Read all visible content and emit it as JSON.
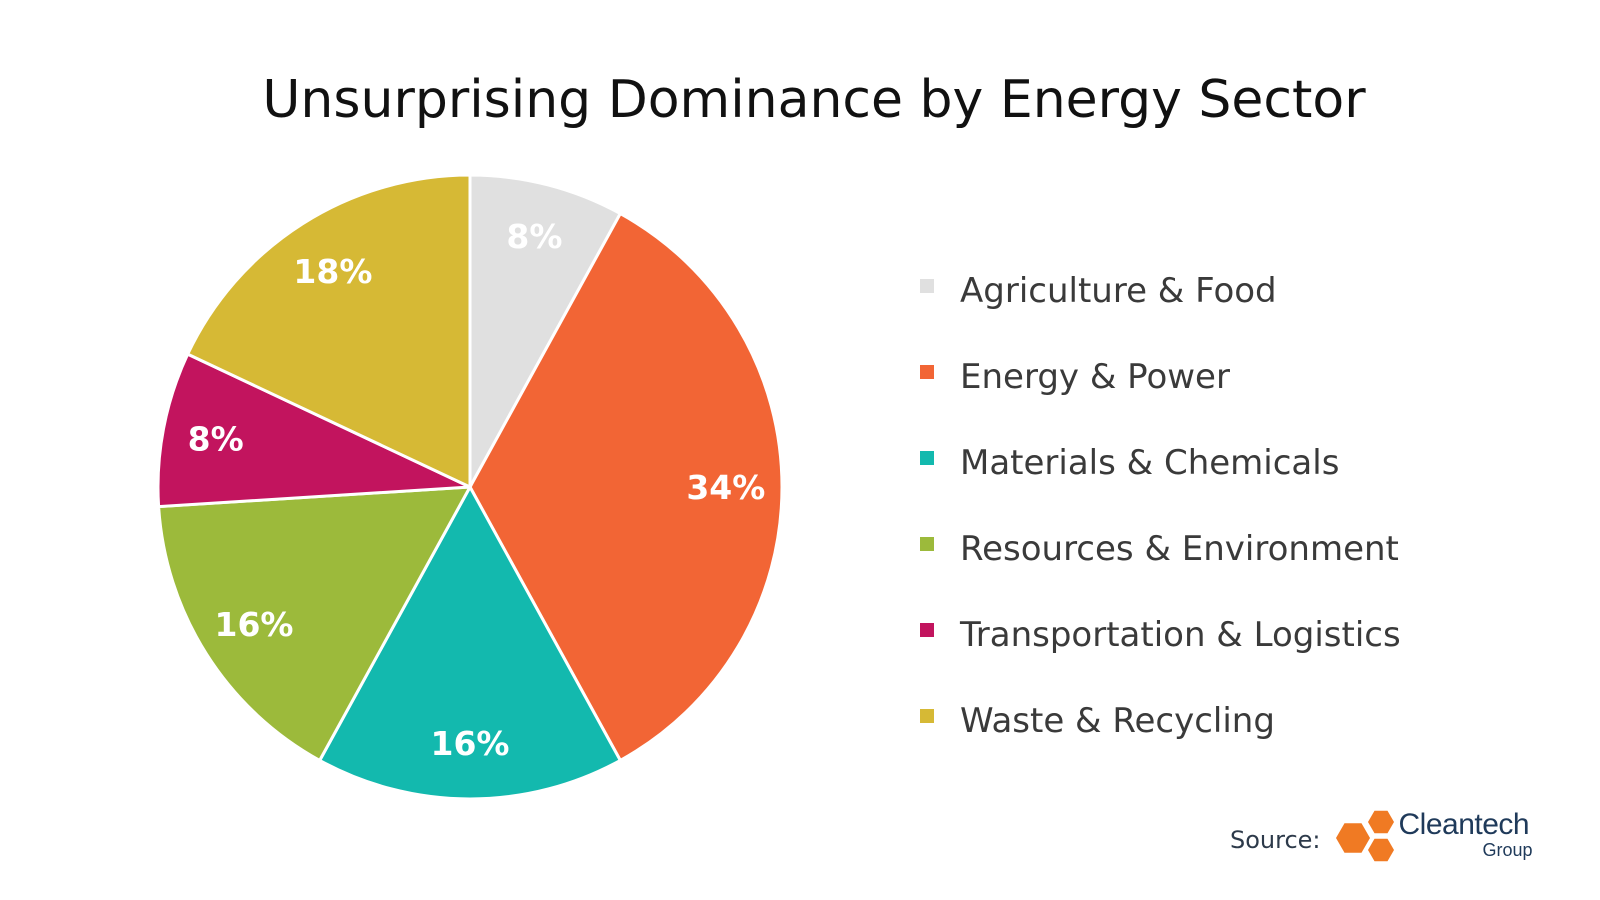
{
  "title": "Unsurprising Dominance by Energy Sector",
  "chart_data": {
    "type": "pie",
    "title": "Unsurprising Dominance by Energy Sector",
    "categories": [
      "Agriculture & Food",
      "Energy & Power",
      "Materials & Chemicals",
      "Resources & Environment",
      "Transportation & Logistics",
      "Waste & Recycling"
    ],
    "values": [
      8,
      34,
      16,
      16,
      8,
      18
    ],
    "data_labels": [
      "8%",
      "34%",
      "16%",
      "16%",
      "8%",
      "18%"
    ],
    "colors": [
      "#e0e0e0",
      "#f26535",
      "#13b9ae",
      "#9cba3b",
      "#c2145e",
      "#d6b935"
    ],
    "label_colors": [
      "#ffffff",
      "#ffffff",
      "#ffffff",
      "#ffffff",
      "#ffffff",
      "#ffffff"
    ],
    "start_angle": "12 o'clock, clockwise",
    "legend_position": "right"
  },
  "source": {
    "label": "Source:",
    "brand": "Cleantech",
    "brand_sub": "Group",
    "logo_color": "#f07a23"
  }
}
